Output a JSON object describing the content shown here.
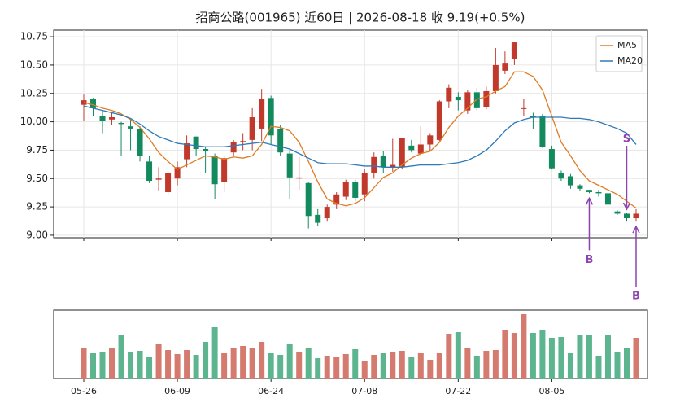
{
  "chart_data": {
    "type": "candlestick",
    "title": "招商公路(001965) 近60日  |  2026-08-18 收 9.19(+0.5%)",
    "categories": [
      "05-26",
      null,
      null,
      null,
      null,
      null,
      null,
      null,
      null,
      null,
      "06-09",
      null,
      null,
      null,
      null,
      null,
      null,
      null,
      null,
      null,
      "06-24",
      null,
      null,
      null,
      null,
      null,
      null,
      null,
      null,
      null,
      "07-08",
      null,
      null,
      null,
      null,
      null,
      null,
      null,
      null,
      null,
      "07-22",
      null,
      null,
      null,
      null,
      null,
      null,
      null,
      null,
      null,
      "08-05",
      null,
      null,
      null,
      null,
      null,
      null,
      null,
      null,
      null
    ],
    "open": [
      10.15,
      10.2,
      10.05,
      10.02,
      9.99,
      9.96,
      9.94,
      9.65,
      9.49,
      9.38,
      9.5,
      9.67,
      9.87,
      9.76,
      9.7,
      9.47,
      9.73,
      9.82,
      9.84,
      9.94,
      10.21,
      9.94,
      9.72,
      9.5,
      9.46,
      9.18,
      9.15,
      9.27,
      9.34,
      9.47,
      9.36,
      9.55,
      9.7,
      9.6,
      9.6,
      9.79,
      9.72,
      9.8,
      9.84,
      10.18,
      10.22,
      10.1,
      10.26,
      10.13,
      10.27,
      10.45,
      10.55,
      10.12,
      10.05,
      10.05,
      9.76,
      9.55,
      9.52,
      9.44,
      9.4,
      9.38,
      9.37,
      9.21,
      9.19,
      9.15
    ],
    "high": [
      10.24,
      10.21,
      10.1,
      10.09,
      10.0,
      10.02,
      9.96,
      9.7,
      9.6,
      9.56,
      9.65,
      9.88,
      9.87,
      9.78,
      9.72,
      9.7,
      9.84,
      9.9,
      10.12,
      10.29,
      10.23,
      9.97,
      9.76,
      9.69,
      9.47,
      9.23,
      9.27,
      9.38,
      9.49,
      9.49,
      9.58,
      9.73,
      9.74,
      9.85,
      9.86,
      9.84,
      9.96,
      9.9,
      10.19,
      10.33,
      10.26,
      10.28,
      10.3,
      10.31,
      10.65,
      10.62,
      10.7,
      10.2,
      10.08,
      10.07,
      9.79,
      9.57,
      9.54,
      9.45,
      9.4,
      9.4,
      9.38,
      9.22,
      9.2,
      9.23
    ],
    "low": [
      10.01,
      10.05,
      9.9,
      9.97,
      9.7,
      9.75,
      9.65,
      9.46,
      9.39,
      9.36,
      9.44,
      9.6,
      9.7,
      9.55,
      9.32,
      9.38,
      9.7,
      9.75,
      9.75,
      9.83,
      9.8,
      9.7,
      9.32,
      9.4,
      9.06,
      9.08,
      9.12,
      9.23,
      9.31,
      9.3,
      9.3,
      9.5,
      9.55,
      9.56,
      9.58,
      9.73,
      9.7,
      9.74,
      9.83,
      10.12,
      10.1,
      10.07,
      10.1,
      10.11,
      10.25,
      10.42,
      10.5,
      10.05,
      9.94,
      9.77,
      9.58,
      9.48,
      9.41,
      9.39,
      9.37,
      9.34,
      9.26,
      9.18,
      9.12,
      9.12
    ],
    "close": [
      10.19,
      10.12,
      10.01,
      10.04,
      9.98,
      9.94,
      9.7,
      9.48,
      9.5,
      9.55,
      9.6,
      9.81,
      9.76,
      9.74,
      9.45,
      9.68,
      9.82,
      9.83,
      10.04,
      10.2,
      9.88,
      9.73,
      9.51,
      9.51,
      9.17,
      9.11,
      9.25,
      9.36,
      9.47,
      9.33,
      9.55,
      9.69,
      9.6,
      9.62,
      9.86,
      9.75,
      9.8,
      9.88,
      10.18,
      10.3,
      10.19,
      10.26,
      10.12,
      10.27,
      10.5,
      10.52,
      10.7,
      10.12,
      10.04,
      9.78,
      9.59,
      9.5,
      9.44,
      9.41,
      9.38,
      9.37,
      9.27,
      9.19,
      9.15,
      9.19
    ],
    "up_color": "#c0392b",
    "down_color": "#138a5e",
    "vol_up_color": "#d47a6e",
    "vol_down_color": "#5db58f",
    "series": [
      {
        "name": "MA5",
        "color": "#e07b24",
        "values": [
          10.17,
          10.15,
          10.12,
          10.1,
          10.07,
          10.02,
          9.95,
          9.85,
          9.73,
          9.65,
          9.58,
          9.62,
          9.66,
          9.7,
          9.69,
          9.67,
          9.69,
          9.68,
          9.7,
          9.8,
          9.96,
          9.95,
          9.92,
          9.82,
          9.65,
          9.47,
          9.32,
          9.28,
          9.26,
          9.28,
          9.33,
          9.42,
          9.51,
          9.55,
          9.62,
          9.68,
          9.72,
          9.74,
          9.82,
          9.95,
          10.05,
          10.12,
          10.2,
          10.22,
          10.27,
          10.31,
          10.44,
          10.44,
          10.4,
          10.28,
          10.05,
          9.82,
          9.7,
          9.57,
          9.48,
          9.44,
          9.4,
          9.36,
          9.3,
          9.24
        ]
      },
      {
        "name": "MA20",
        "color": "#2e7ab8",
        "values": [
          10.14,
          10.12,
          10.1,
          10.08,
          10.06,
          10.03,
          9.98,
          9.92,
          9.87,
          9.84,
          9.81,
          9.8,
          9.79,
          9.78,
          9.78,
          9.78,
          9.79,
          9.8,
          9.81,
          9.82,
          9.8,
          9.78,
          9.76,
          9.72,
          9.68,
          9.64,
          9.63,
          9.63,
          9.63,
          9.62,
          9.61,
          9.61,
          9.6,
          9.6,
          9.6,
          9.61,
          9.62,
          9.62,
          9.62,
          9.63,
          9.64,
          9.66,
          9.7,
          9.75,
          9.83,
          9.92,
          9.99,
          10.02,
          10.04,
          10.04,
          10.04,
          10.04,
          10.03,
          10.03,
          10.02,
          10.0,
          9.97,
          9.94,
          9.9,
          9.8
        ]
      }
    ],
    "volume": [
      38,
      32,
      33,
      38,
      54,
      33,
      34,
      27,
      43,
      35,
      30,
      35,
      29,
      45,
      63,
      32,
      38,
      40,
      38,
      45,
      31,
      29,
      43,
      33,
      38,
      25,
      28,
      26,
      30,
      36,
      22,
      29,
      31,
      33,
      34,
      27,
      32,
      23,
      32,
      55,
      57,
      37,
      28,
      34,
      35,
      60,
      56,
      79,
      56,
      60,
      50,
      51,
      32,
      53,
      54,
      28,
      54,
      33,
      37,
      50
    ],
    "vol_ylim": [
      0,
      84
    ],
    "ylim": [
      8.978,
      10.808
    ],
    "yticks": [
      {
        "value": 9.0,
        "label": "9.00"
      },
      {
        "value": 9.25,
        "label": "9.25"
      },
      {
        "value": 9.5,
        "label": "9.50"
      },
      {
        "value": 9.75,
        "label": "9.75"
      },
      {
        "value": 10.0,
        "label": "10.00"
      },
      {
        "value": 10.25,
        "label": "10.25"
      },
      {
        "value": 10.5,
        "label": "10.50"
      },
      {
        "value": 10.75,
        "label": "10.75"
      }
    ],
    "grid": true,
    "legend": "upper right",
    "signals": [
      {
        "label": "S",
        "index": 58,
        "color": "#8e44ad"
      },
      {
        "label": "B",
        "index": 54,
        "color": "#8e44ad"
      },
      {
        "label": "B",
        "index": 59,
        "color": "#8e44ad"
      }
    ]
  }
}
